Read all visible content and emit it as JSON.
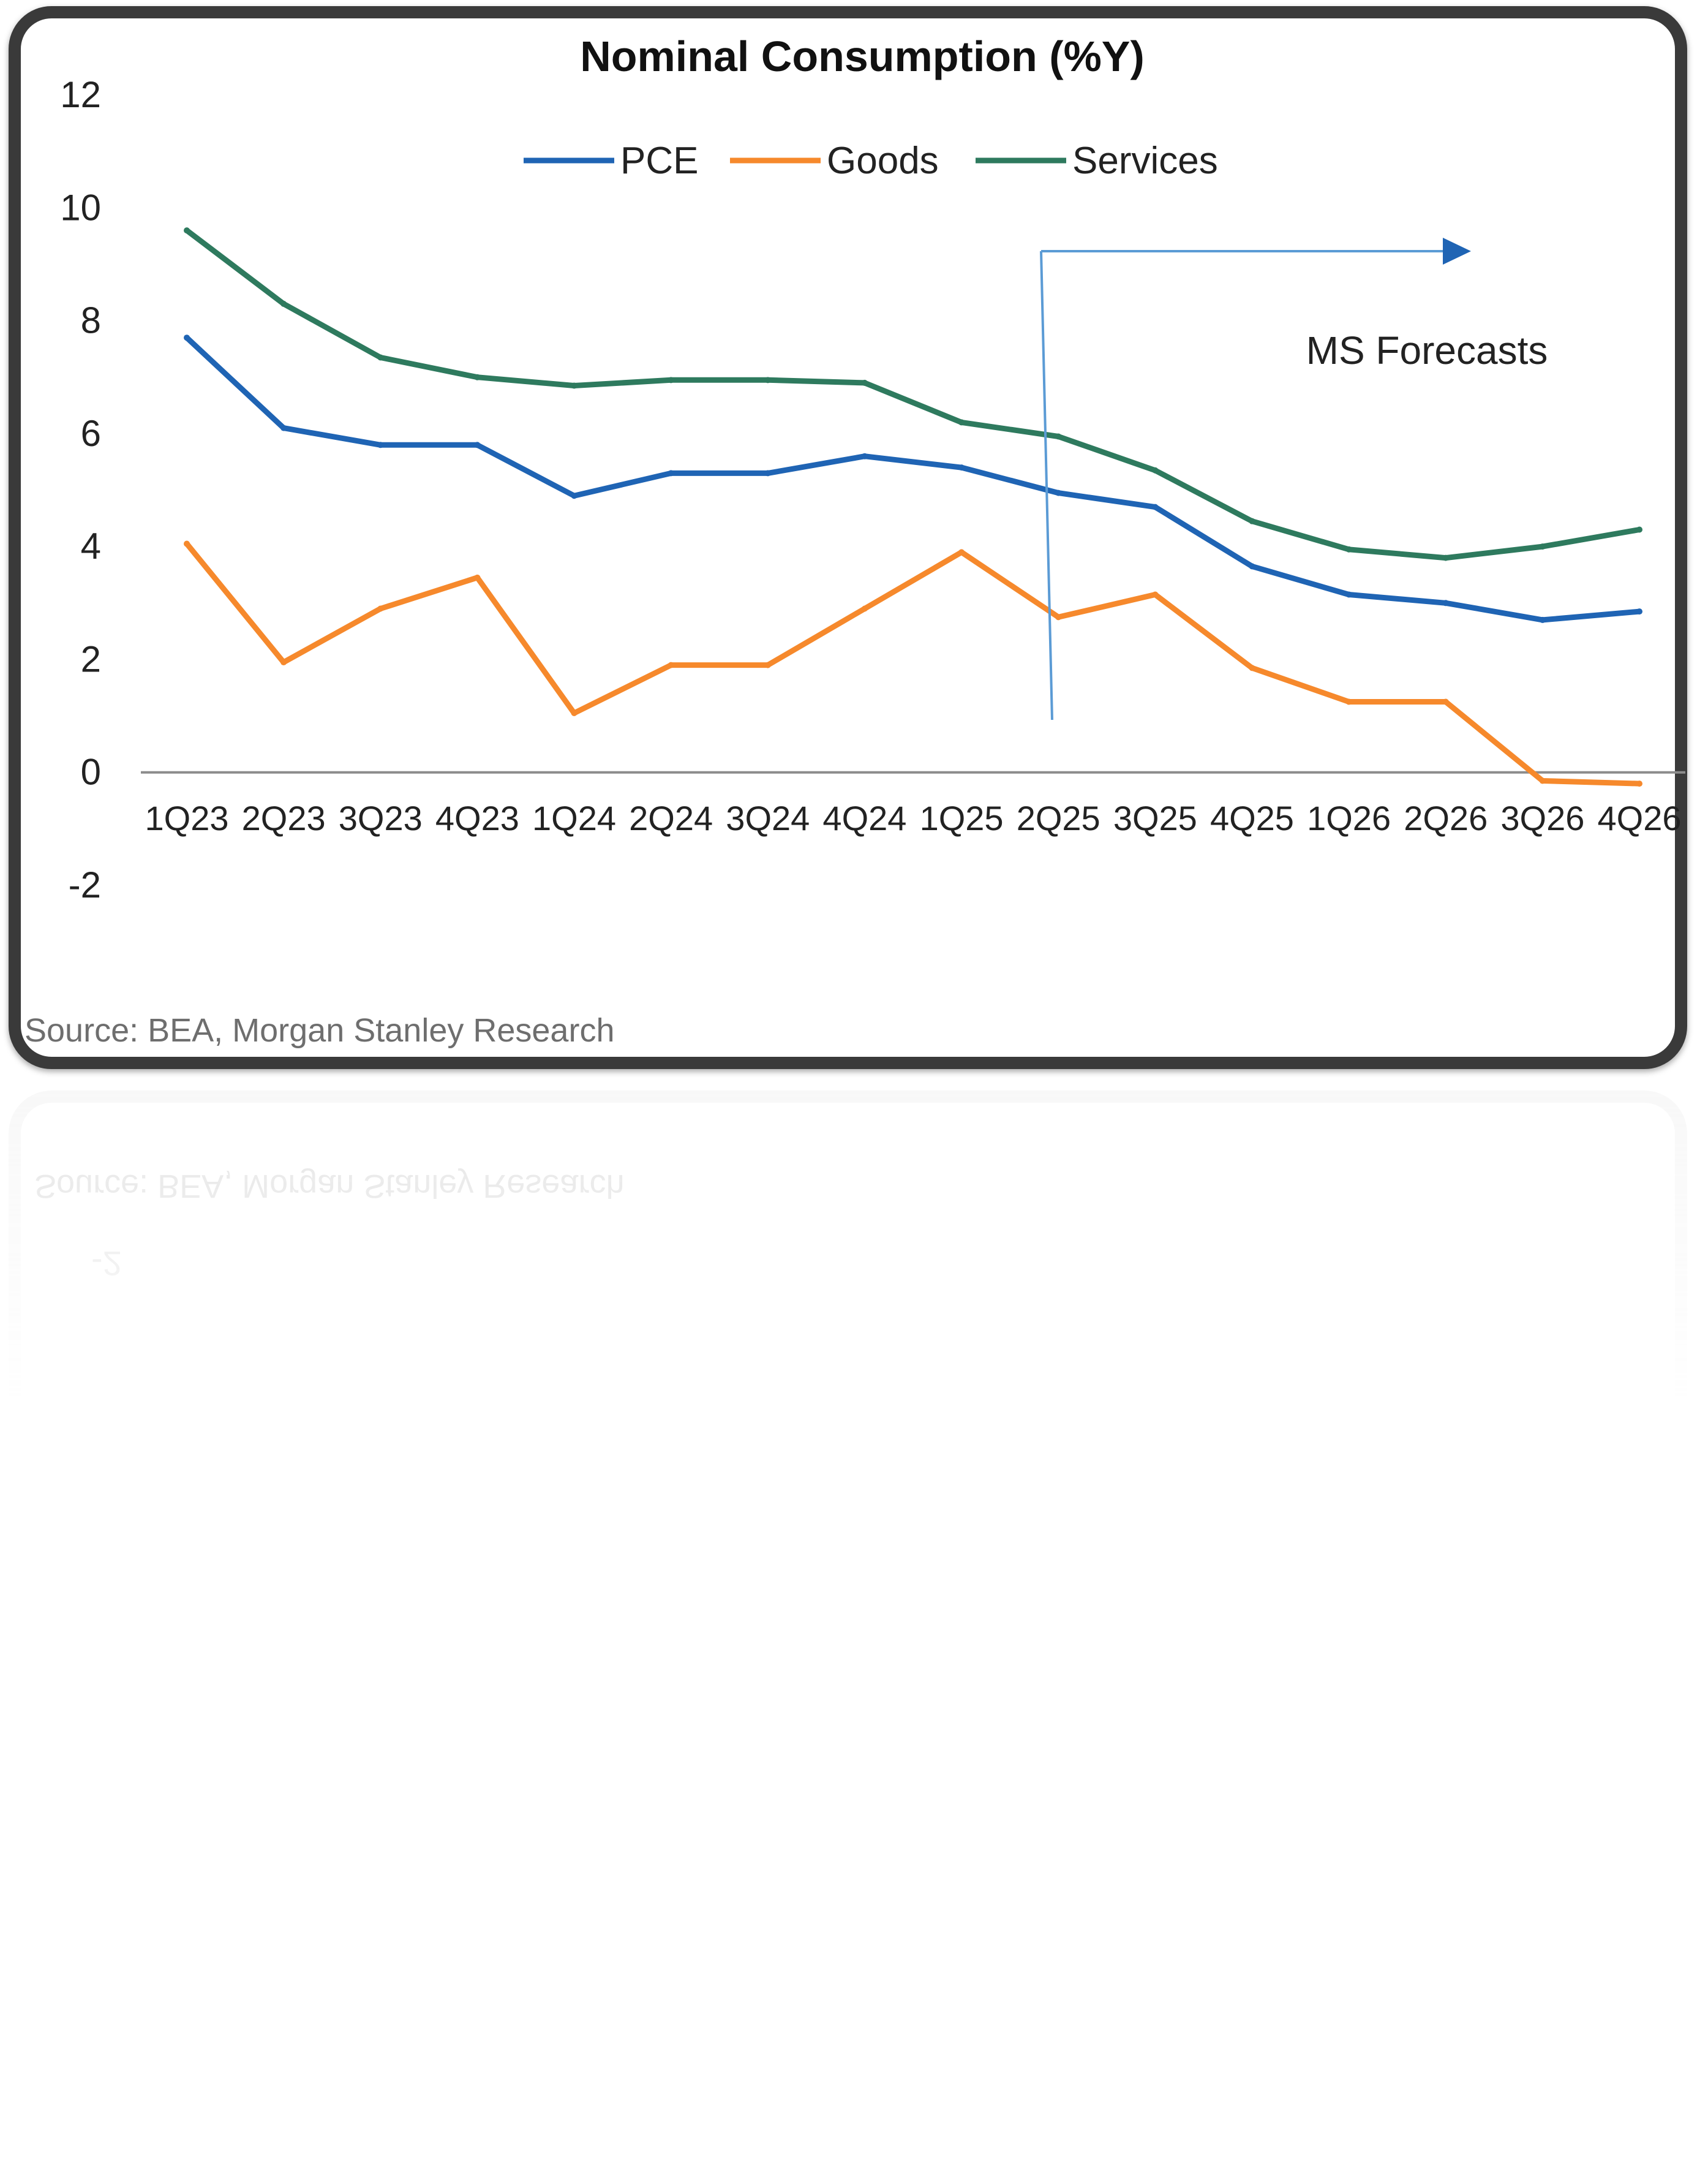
{
  "chart_data": {
    "type": "line",
    "title": "Nominal Consumption (%Y)",
    "categories": [
      "1Q23",
      "2Q23",
      "3Q23",
      "4Q23",
      "1Q24",
      "2Q24",
      "3Q24",
      "4Q24",
      "1Q25",
      "2Q25",
      "3Q25",
      "4Q25",
      "1Q26",
      "2Q26",
      "3Q26",
      "4Q26"
    ],
    "series": [
      {
        "name": "PCE",
        "color": "#1f64b4",
        "values": [
          7.7,
          6.1,
          5.8,
          5.8,
          4.9,
          5.3,
          5.3,
          5.6,
          5.4,
          4.95,
          4.7,
          3.65,
          3.15,
          3.0,
          2.7,
          2.85
        ]
      },
      {
        "name": "Goods",
        "color": "#f6892c",
        "values": [
          4.05,
          1.95,
          2.9,
          3.45,
          1.05,
          1.9,
          1.9,
          2.9,
          3.9,
          2.75,
          3.15,
          1.85,
          1.25,
          1.25,
          -0.15,
          -0.2
        ]
      },
      {
        "name": "Services",
        "color": "#2e7a5e",
        "values": [
          9.6,
          8.3,
          7.35,
          7.0,
          6.85,
          6.95,
          6.95,
          6.9,
          6.2,
          5.95,
          5.35,
          4.45,
          3.95,
          3.8,
          4.0,
          4.3
        ]
      }
    ],
    "yticks": [
      "12",
      "10",
      "8",
      "6",
      "4",
      "2",
      "0",
      "-2"
    ],
    "ylim": [
      -2,
      12
    ],
    "grid": false,
    "legend_position": "top",
    "annotation": {
      "text": "MS Forecasts",
      "start_category": "2Q25",
      "arrow_color": "#5b9bd5"
    },
    "source": "Source: BEA, Morgan Stanley Research"
  },
  "icons": {
    "arrow": "right-arrow-icon"
  }
}
